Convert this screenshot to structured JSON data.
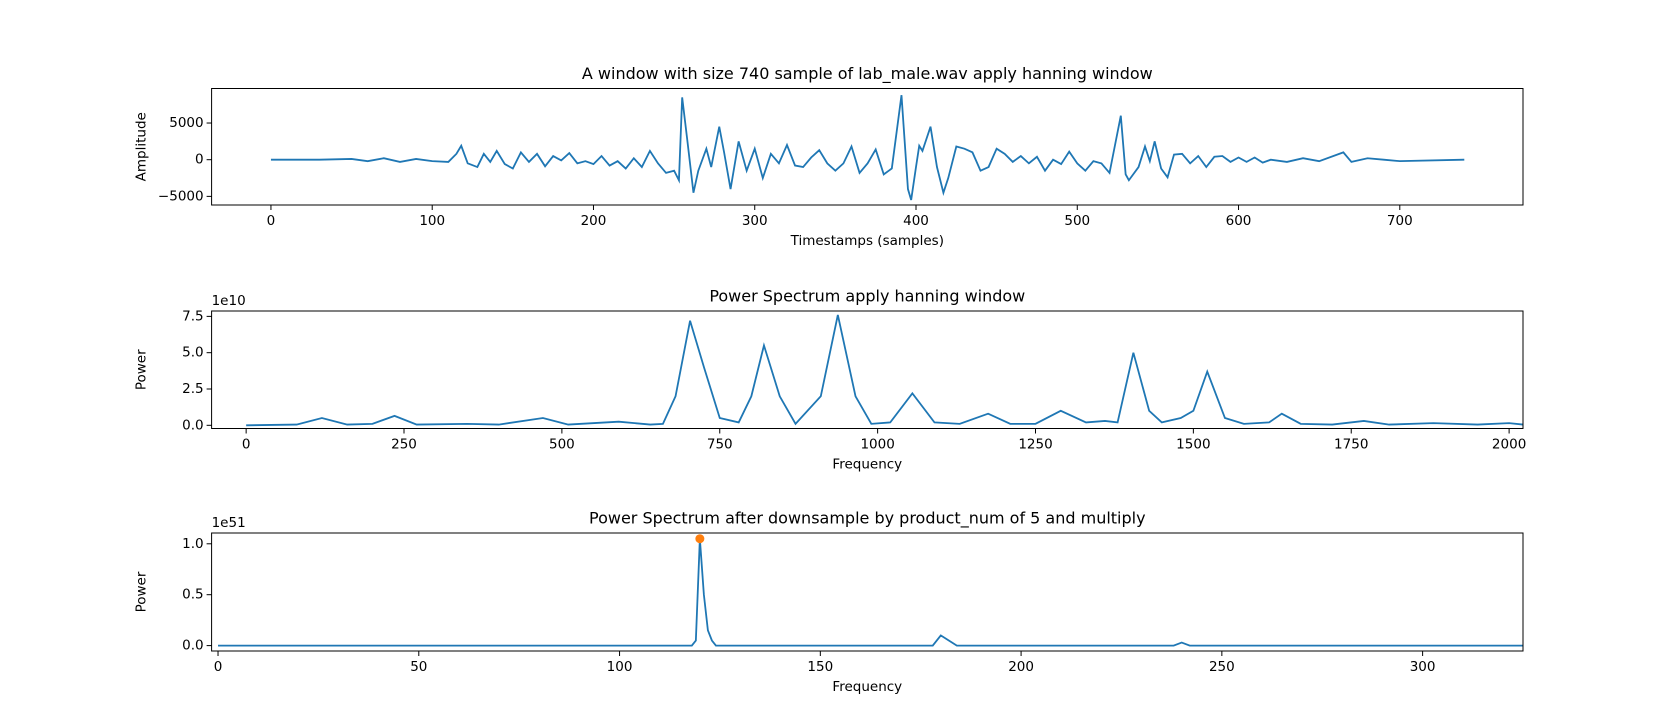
{
  "chart_data": [
    {
      "type": "line",
      "title": "A window with size 740 sample of lab_male.wav apply hanning window",
      "xlabel": "Timestamps (samples)",
      "ylabel": "Amplitude",
      "xlim": [
        -36.8,
        776.4
      ],
      "xticks": [
        0,
        100,
        200,
        300,
        400,
        500,
        600,
        700
      ],
      "ylim": [
        -6176,
        9706
      ],
      "yticks": [
        {
          "value": -5000,
          "label": "−5000"
        },
        0,
        5000
      ],
      "x": [
        0,
        30,
        50,
        60,
        70,
        80,
        90,
        100,
        110,
        115,
        118,
        122,
        128,
        132,
        136,
        140,
        145,
        150,
        155,
        160,
        165,
        170,
        175,
        180,
        185,
        190,
        195,
        200,
        205,
        210,
        215,
        220,
        225,
        230,
        235,
        240,
        245,
        250,
        253,
        255,
        258,
        262,
        265,
        270,
        273,
        278,
        281,
        285,
        290,
        295,
        300,
        305,
        310,
        315,
        320,
        325,
        330,
        335,
        340,
        345,
        350,
        355,
        360,
        365,
        370,
        375,
        380,
        385,
        391,
        395,
        397,
        400,
        402,
        404,
        409,
        413,
        417,
        420,
        425,
        430,
        435,
        440,
        445,
        450,
        455,
        460,
        465,
        470,
        475,
        480,
        485,
        490,
        495,
        500,
        505,
        510,
        515,
        520,
        527,
        530,
        532,
        538,
        542,
        545,
        548,
        552,
        556,
        560,
        565,
        570,
        575,
        580,
        585,
        590,
        595,
        600,
        605,
        610,
        615,
        620,
        630,
        640,
        650,
        665,
        670,
        680,
        690,
        700,
        740
      ],
      "series": [
        {
          "color": "#1f77b4",
          "values": [
            0,
            0,
            100,
            -200,
            200,
            -300,
            100,
            -200,
            -300,
            800,
            1900,
            -500,
            -1000,
            800,
            -300,
            1200,
            -600,
            -1200,
            1000,
            -300,
            800,
            -900,
            500,
            -100,
            900,
            -500,
            -200,
            -600,
            500,
            -800,
            -200,
            -1200,
            200,
            -1000,
            1200,
            -500,
            -1800,
            -1500,
            -2800,
            8500,
            3000,
            -4500,
            -1500,
            1500,
            -1000,
            4500,
            1000,
            -4000,
            2500,
            -1500,
            1500,
            -2500,
            800,
            -500,
            2000,
            -800,
            -1000,
            300,
            1300,
            -500,
            -1500,
            -500,
            1800,
            -1800,
            -500,
            1400,
            -2000,
            -1200,
            8800,
            -4000,
            -5500,
            -1000,
            1900,
            1200,
            4500,
            -1000,
            -4500,
            -2500,
            1800,
            1500,
            1000,
            -1500,
            -1000,
            1500,
            800,
            -300,
            500,
            -500,
            400,
            -1500,
            0,
            -600,
            1100,
            -500,
            -1500,
            -200,
            -500,
            -1800,
            6000,
            -2000,
            -2800,
            -1000,
            1800,
            -200,
            2500,
            -1200,
            -2400,
            700,
            800,
            -500,
            500,
            -1000,
            400,
            500,
            -300,
            300,
            -300,
            300,
            -400,
            0,
            -300,
            200,
            -200,
            1000,
            -300,
            200,
            0,
            -200,
            0
          ]
        }
      ]
    },
    {
      "type": "line",
      "title": "Power Spectrum apply hanning window",
      "xlabel": "Frequency",
      "ylabel": "Power",
      "y_offset_label": "1e10",
      "xlim": [
        -54.7,
        2022
      ],
      "xticks": [
        0,
        250,
        500,
        750,
        1000,
        1250,
        1500,
        1750,
        2000
      ],
      "ylim": [
        -0.22,
        7.87
      ],
      "yticks": [
        {
          "value": 0,
          "label": "0.0"
        },
        2.5,
        {
          "value": 5,
          "label": "5.0"
        },
        7.5
      ],
      "x": [
        0,
        80,
        120,
        160,
        200,
        235,
        270,
        350,
        400,
        470,
        510,
        590,
        640,
        660,
        680,
        703,
        725,
        750,
        780,
        800,
        820,
        845,
        870,
        910,
        937,
        965,
        990,
        1020,
        1055,
        1090,
        1130,
        1175,
        1210,
        1250,
        1290,
        1330,
        1360,
        1380,
        1405,
        1430,
        1450,
        1480,
        1500,
        1522,
        1550,
        1580,
        1620,
        1640,
        1670,
        1720,
        1770,
        1810,
        1880,
        1950,
        2000,
        2022
      ],
      "series": [
        {
          "color": "#1f77b4",
          "values": [
            0,
            0.05,
            0.5,
            0.05,
            0.1,
            0.65,
            0.05,
            0.1,
            0.05,
            0.5,
            0.05,
            0.25,
            0.05,
            0.1,
            2,
            7.2,
            4,
            0.5,
            0.2,
            2,
            5.5,
            2,
            0.1,
            2,
            7.6,
            2,
            0.1,
            0.2,
            2.2,
            0.2,
            0.1,
            0.8,
            0.1,
            0.1,
            1.0,
            0.2,
            0.3,
            0.2,
            5.0,
            1.0,
            0.2,
            0.5,
            1.0,
            3.7,
            0.5,
            0.1,
            0.2,
            0.8,
            0.1,
            0.05,
            0.3,
            0.05,
            0.15,
            0.05,
            0.15,
            0.05
          ]
        }
      ]
    },
    {
      "type": "line",
      "title": "Power Spectrum after downsample by product_num of 5 and multiply",
      "xlabel": "Frequency",
      "ylabel": "Power",
      "y_offset_label": "1e51",
      "xlim": [
        -1.6,
        325
      ],
      "xticks": [
        0,
        50,
        100,
        150,
        200,
        250,
        300
      ],
      "ylim": [
        -0.053,
        1.106
      ],
      "yticks": [
        {
          "value": 0,
          "label": "0.0"
        },
        0.5,
        {
          "value": 1,
          "label": "1.0"
        }
      ],
      "x": [
        0,
        118,
        119,
        120,
        121,
        122,
        123,
        124,
        178,
        180,
        182,
        184,
        238,
        240,
        242,
        325
      ],
      "series": [
        {
          "color": "#1f77b4",
          "values": [
            0,
            0,
            0.05,
            1.05,
            0.5,
            0.15,
            0.05,
            0,
            0,
            0.1,
            0.05,
            0,
            0,
            0.03,
            0,
            0
          ]
        }
      ],
      "peak": {
        "x": 120,
        "y": 1.05,
        "color": "#ff7f0e"
      }
    }
  ]
}
